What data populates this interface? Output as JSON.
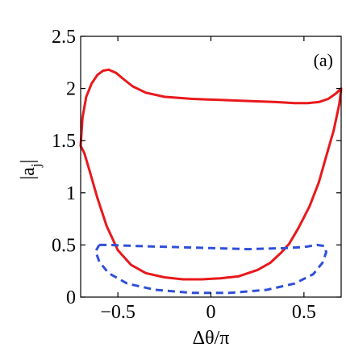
{
  "chart_data": {
    "type": "line",
    "panel_label": "(a)",
    "xlabel": "Δθ/π",
    "ylabel": "|a",
    "ylabel_sub": "j",
    "ylabel_close": "|",
    "xlim": [
      -0.7,
      0.7
    ],
    "ylim": [
      0,
      2.5
    ],
    "xticks": [
      {
        "value": -0.5,
        "label": "−0.5"
      },
      {
        "value": 0,
        "label": "0"
      },
      {
        "value": 0.5,
        "label": "0.5"
      }
    ],
    "yticks": [
      {
        "value": 0,
        "label": "0"
      },
      {
        "value": 0.5,
        "label": "0.5"
      },
      {
        "value": 1,
        "label": "1"
      },
      {
        "value": 1.5,
        "label": "1.5"
      },
      {
        "value": 2,
        "label": "2"
      },
      {
        "value": 2.5,
        "label": "2.5"
      }
    ],
    "grid": false,
    "series": [
      {
        "color": "#e8191c",
        "style": "solid",
        "points": [
          [
            -0.7,
            1.45
          ],
          [
            -0.69,
            1.72
          ],
          [
            -0.67,
            1.92
          ],
          [
            -0.64,
            2.05
          ],
          [
            -0.61,
            2.13
          ],
          [
            -0.58,
            2.17
          ],
          [
            -0.55,
            2.18
          ],
          [
            -0.51,
            2.15
          ],
          [
            -0.47,
            2.09
          ],
          [
            -0.42,
            2.02
          ],
          [
            -0.35,
            1.96
          ],
          [
            -0.25,
            1.92
          ],
          [
            -0.1,
            1.9
          ],
          [
            0.05,
            1.89
          ],
          [
            0.2,
            1.88
          ],
          [
            0.35,
            1.87
          ],
          [
            0.45,
            1.86
          ],
          [
            0.52,
            1.86
          ],
          [
            0.58,
            1.87
          ],
          [
            0.63,
            1.9
          ],
          [
            0.67,
            1.95
          ],
          [
            0.7,
            2.0
          ],
          [
            0.69,
            1.85
          ],
          [
            0.66,
            1.6
          ],
          [
            0.62,
            1.35
          ],
          [
            0.58,
            1.1
          ],
          [
            0.53,
            0.87
          ],
          [
            0.47,
            0.66
          ],
          [
            0.42,
            0.51
          ],
          [
            0.38,
            0.43
          ],
          [
            0.32,
            0.33
          ],
          [
            0.25,
            0.26
          ],
          [
            0.15,
            0.2
          ],
          [
            0.05,
            0.18
          ],
          [
            -0.05,
            0.17
          ],
          [
            -0.15,
            0.17
          ],
          [
            -0.25,
            0.19
          ],
          [
            -0.35,
            0.23
          ],
          [
            -0.43,
            0.31
          ],
          [
            -0.5,
            0.45
          ],
          [
            -0.56,
            0.68
          ],
          [
            -0.61,
            0.95
          ],
          [
            -0.65,
            1.2
          ],
          [
            -0.68,
            1.38
          ],
          [
            -0.7,
            1.45
          ]
        ]
      },
      {
        "color": "#2f4fd9",
        "style": "dashed",
        "points": [
          [
            -0.6,
            0.5
          ],
          [
            -0.55,
            0.5
          ],
          [
            -0.4,
            0.49
          ],
          [
            -0.2,
            0.48
          ],
          [
            0.0,
            0.47
          ],
          [
            0.2,
            0.46
          ],
          [
            0.4,
            0.47
          ],
          [
            0.5,
            0.48
          ],
          [
            0.57,
            0.5
          ],
          [
            0.61,
            0.49
          ],
          [
            0.62,
            0.43
          ],
          [
            0.6,
            0.33
          ],
          [
            0.55,
            0.22
          ],
          [
            0.45,
            0.13
          ],
          [
            0.3,
            0.07
          ],
          [
            0.1,
            0.04
          ],
          [
            -0.1,
            0.04
          ],
          [
            -0.3,
            0.07
          ],
          [
            -0.45,
            0.13
          ],
          [
            -0.55,
            0.23
          ],
          [
            -0.6,
            0.34
          ],
          [
            -0.62,
            0.44
          ],
          [
            -0.6,
            0.5
          ]
        ]
      }
    ]
  }
}
